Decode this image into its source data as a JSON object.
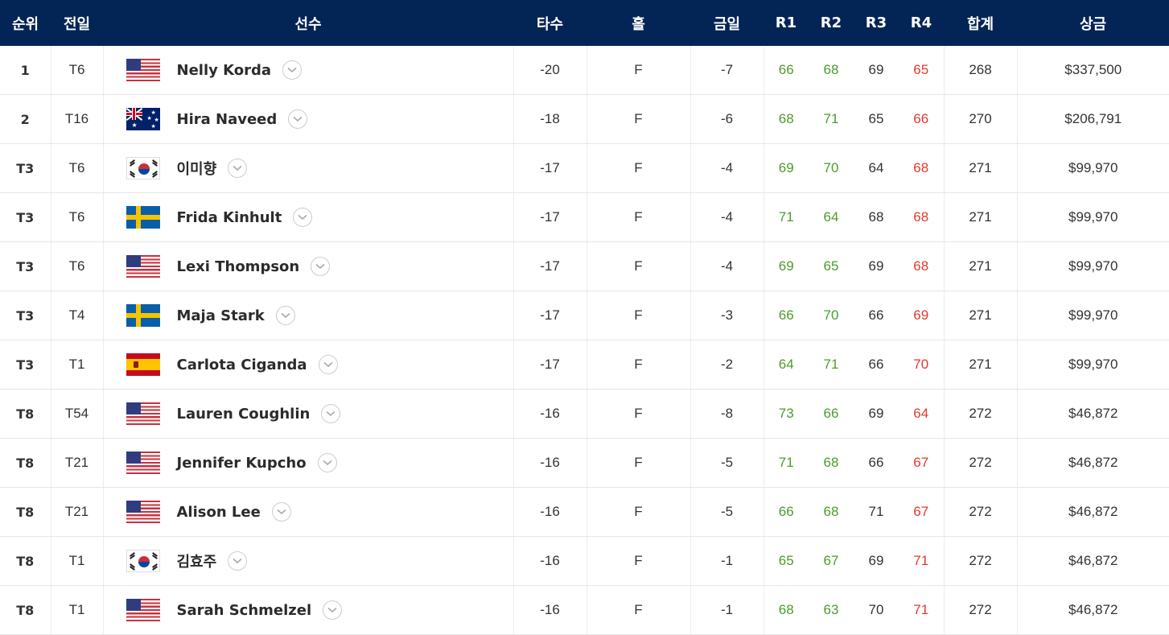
{
  "columns": {
    "rank": "순위",
    "prev": "전일",
    "player": "선수",
    "score": "타수",
    "hole": "홀",
    "today": "금일",
    "r1": "R1",
    "r2": "R2",
    "r3": "R3",
    "r4": "R4",
    "total": "합계",
    "prize": "상금"
  },
  "colors": {
    "header_bg": "#032555",
    "under_par": "#4d9b2c",
    "over_par": "#e23a2c"
  },
  "rows": [
    {
      "rank": "1",
      "prev": "T6",
      "flag": "us",
      "name": "Nelly Korda",
      "score": "-20",
      "hole": "F",
      "today": "-7",
      "r1": "66",
      "r2": "68",
      "r3": "69",
      "r4": "65",
      "total": "268",
      "prize": "$337,500"
    },
    {
      "rank": "2",
      "prev": "T16",
      "flag": "au",
      "name": "Hira Naveed",
      "score": "-18",
      "hole": "F",
      "today": "-6",
      "r1": "68",
      "r2": "71",
      "r3": "65",
      "r4": "66",
      "total": "270",
      "prize": "$206,791"
    },
    {
      "rank": "T3",
      "prev": "T6",
      "flag": "kr",
      "name": "이미향",
      "score": "-17",
      "hole": "F",
      "today": "-4",
      "r1": "69",
      "r2": "70",
      "r3": "64",
      "r4": "68",
      "total": "271",
      "prize": "$99,970"
    },
    {
      "rank": "T3",
      "prev": "T6",
      "flag": "se",
      "name": "Frida Kinhult",
      "score": "-17",
      "hole": "F",
      "today": "-4",
      "r1": "71",
      "r2": "64",
      "r3": "68",
      "r4": "68",
      "total": "271",
      "prize": "$99,970"
    },
    {
      "rank": "T3",
      "prev": "T6",
      "flag": "us",
      "name": "Lexi Thompson",
      "score": "-17",
      "hole": "F",
      "today": "-4",
      "r1": "69",
      "r2": "65",
      "r3": "69",
      "r4": "68",
      "total": "271",
      "prize": "$99,970"
    },
    {
      "rank": "T3",
      "prev": "T4",
      "flag": "se",
      "name": "Maja Stark",
      "score": "-17",
      "hole": "F",
      "today": "-3",
      "r1": "66",
      "r2": "70",
      "r3": "66",
      "r4": "69",
      "total": "271",
      "prize": "$99,970"
    },
    {
      "rank": "T3",
      "prev": "T1",
      "flag": "es",
      "name": "Carlota Ciganda",
      "score": "-17",
      "hole": "F",
      "today": "-2",
      "r1": "64",
      "r2": "71",
      "r3": "66",
      "r4": "70",
      "total": "271",
      "prize": "$99,970"
    },
    {
      "rank": "T8",
      "prev": "T54",
      "flag": "us",
      "name": "Lauren Coughlin",
      "score": "-16",
      "hole": "F",
      "today": "-8",
      "r1": "73",
      "r2": "66",
      "r3": "69",
      "r4": "64",
      "total": "272",
      "prize": "$46,872"
    },
    {
      "rank": "T8",
      "prev": "T21",
      "flag": "us",
      "name": "Jennifer Kupcho",
      "score": "-16",
      "hole": "F",
      "today": "-5",
      "r1": "71",
      "r2": "68",
      "r3": "66",
      "r4": "67",
      "total": "272",
      "prize": "$46,872"
    },
    {
      "rank": "T8",
      "prev": "T21",
      "flag": "us",
      "name": "Alison Lee",
      "score": "-16",
      "hole": "F",
      "today": "-5",
      "r1": "66",
      "r2": "68",
      "r3": "71",
      "r4": "67",
      "total": "272",
      "prize": "$46,872"
    },
    {
      "rank": "T8",
      "prev": "T1",
      "flag": "kr",
      "name": "김효주",
      "score": "-16",
      "hole": "F",
      "today": "-1",
      "r1": "65",
      "r2": "67",
      "r3": "69",
      "r4": "71",
      "total": "272",
      "prize": "$46,872"
    },
    {
      "rank": "T8",
      "prev": "T1",
      "flag": "us",
      "name": "Sarah Schmelzel",
      "score": "-16",
      "hole": "F",
      "today": "-1",
      "r1": "68",
      "r2": "63",
      "r3": "70",
      "r4": "71",
      "total": "272",
      "prize": "$46,872"
    }
  ]
}
